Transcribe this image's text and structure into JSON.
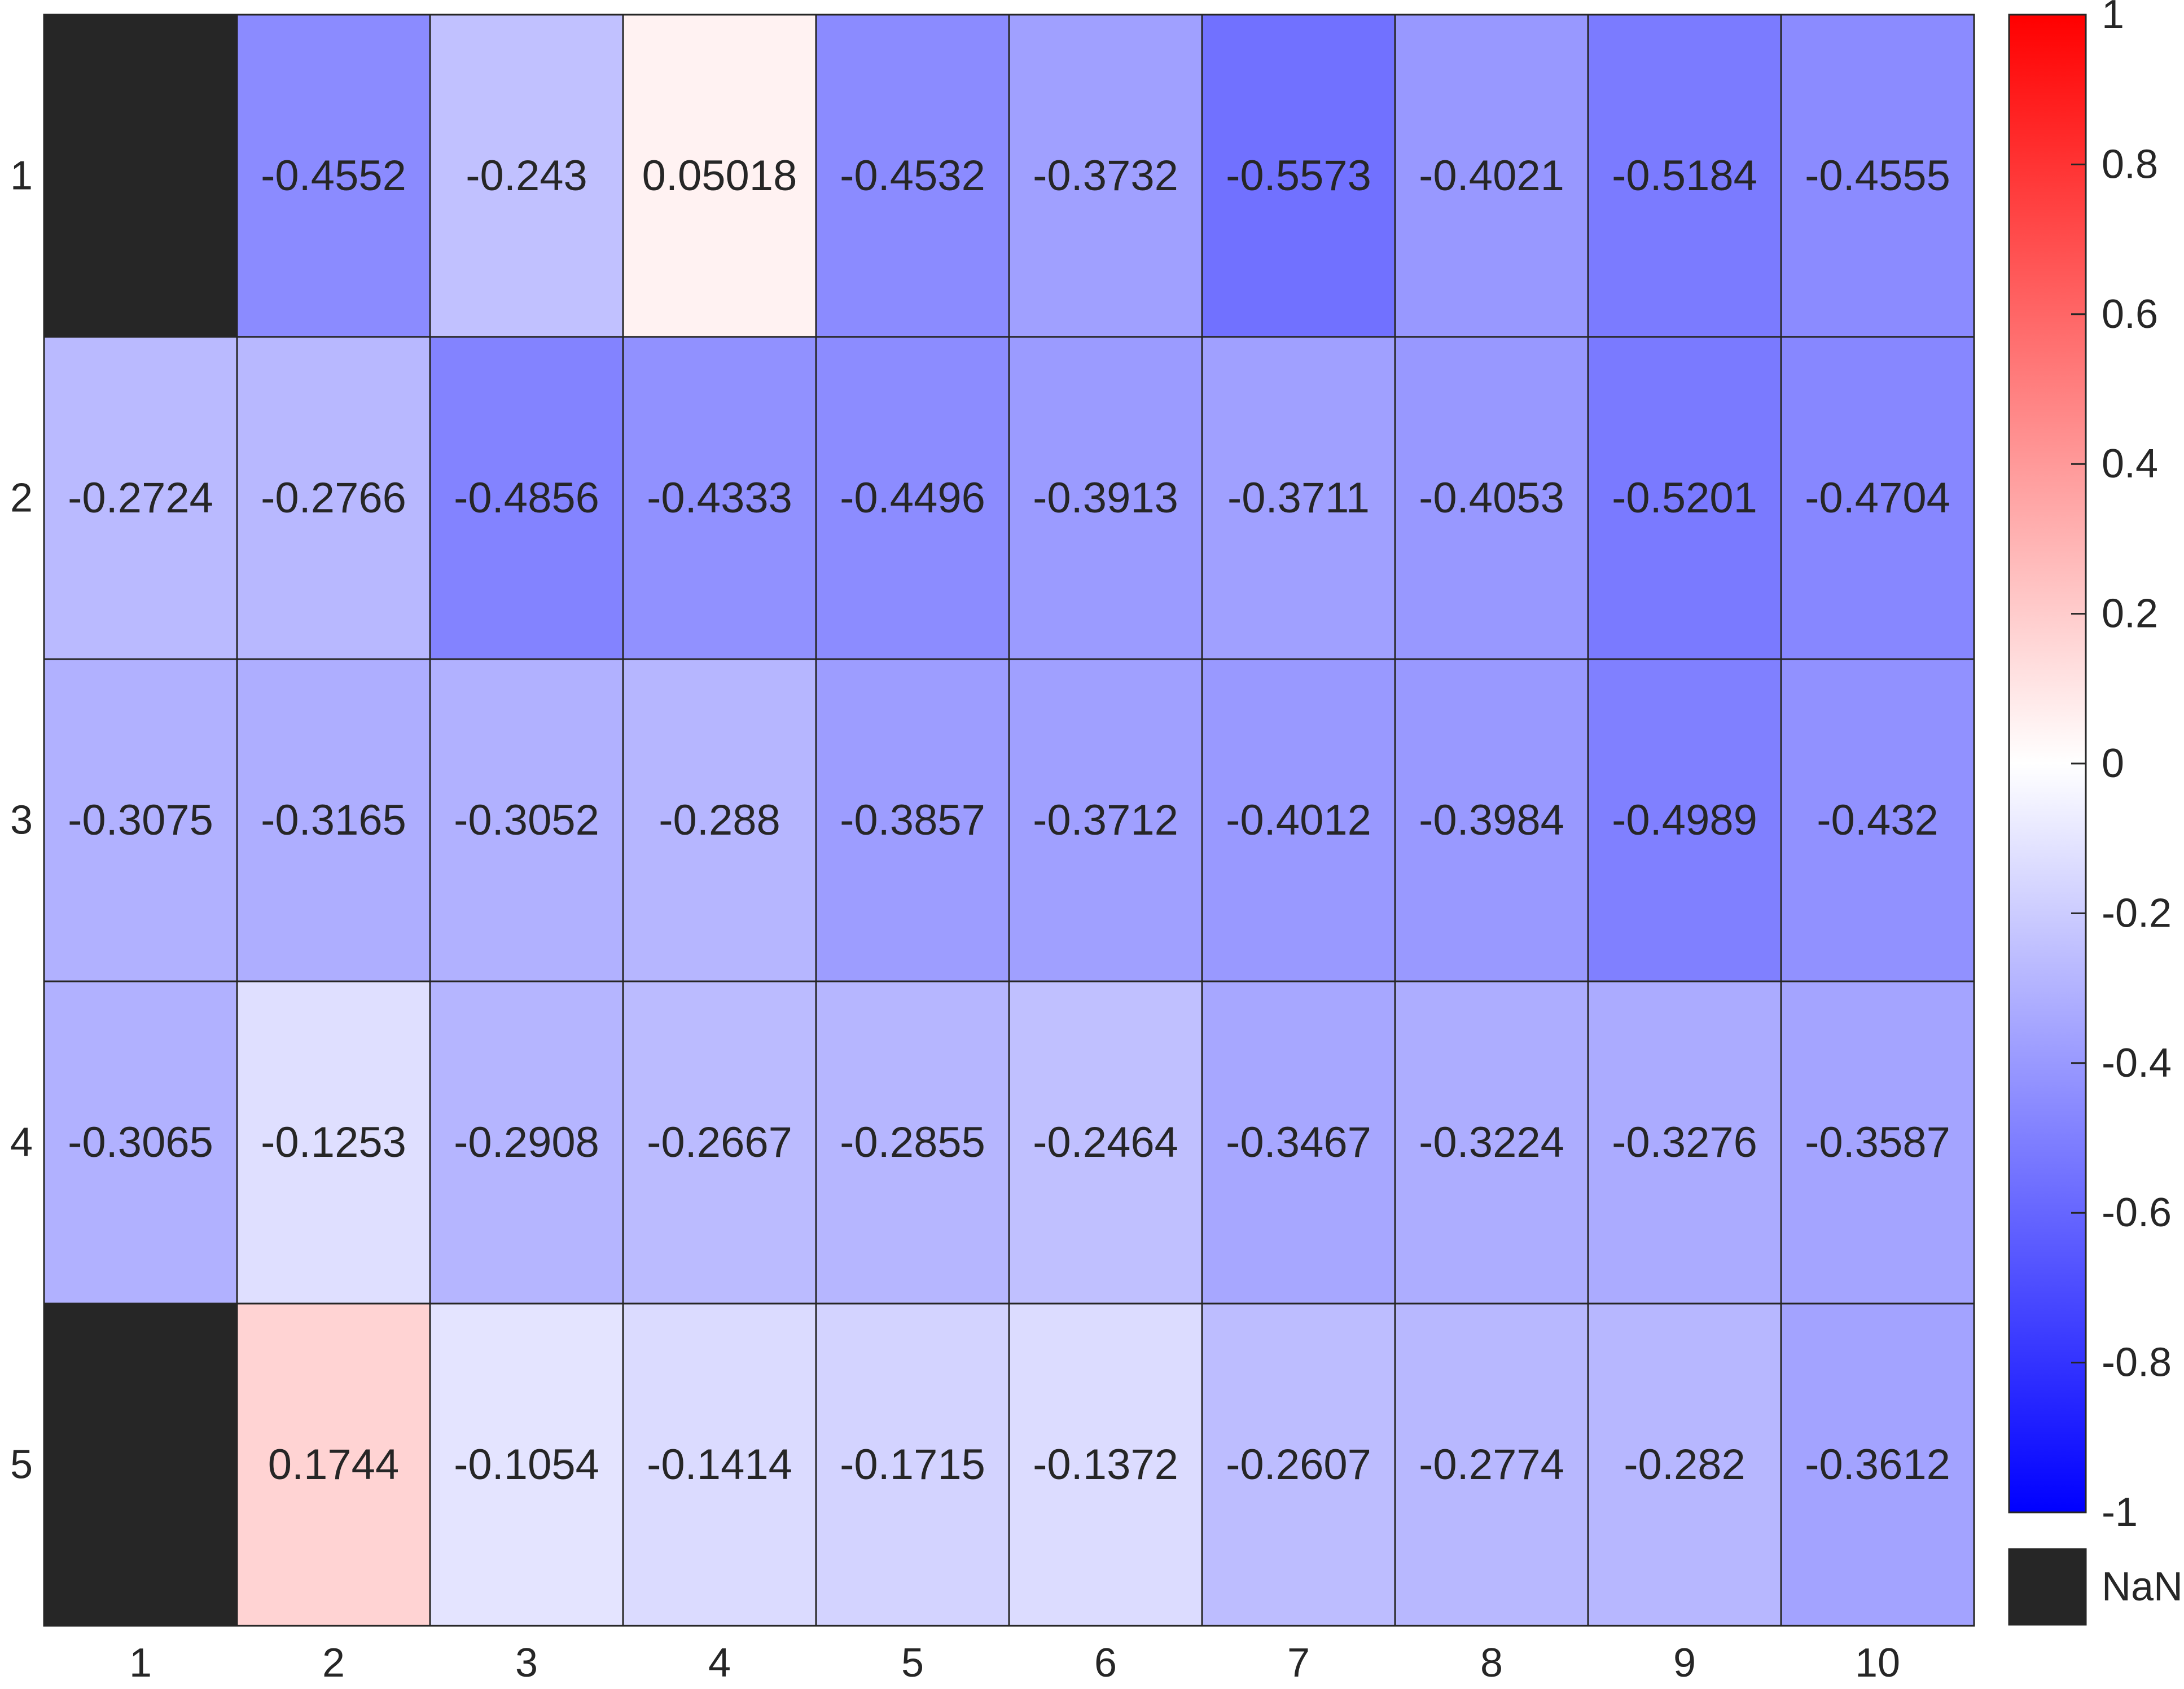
{
  "chart_data": {
    "type": "heatmap",
    "title": "",
    "xlabel": "",
    "ylabel": "",
    "x_categories": [
      "1",
      "2",
      "3",
      "4",
      "5",
      "6",
      "7",
      "8",
      "9",
      "10"
    ],
    "y_categories": [
      "1",
      "2",
      "3",
      "4",
      "5"
    ],
    "values": [
      [
        null,
        -0.4552,
        -0.243,
        0.05018,
        -0.4532,
        -0.3732,
        -0.5573,
        -0.4021,
        -0.5184,
        -0.4555
      ],
      [
        -0.2724,
        -0.2766,
        -0.4856,
        -0.4333,
        -0.4496,
        -0.3913,
        -0.3711,
        -0.4053,
        -0.5201,
        -0.4704
      ],
      [
        -0.3075,
        -0.3165,
        -0.3052,
        -0.288,
        -0.3857,
        -0.3712,
        -0.4012,
        -0.3984,
        -0.4989,
        -0.432
      ],
      [
        -0.3065,
        -0.1253,
        -0.2908,
        -0.2667,
        -0.2855,
        -0.2464,
        -0.3467,
        -0.3224,
        -0.3276,
        -0.3587
      ],
      [
        null,
        0.1744,
        -0.1054,
        -0.1414,
        -0.1715,
        -0.1372,
        -0.2607,
        -0.2774,
        -0.282,
        -0.3612
      ]
    ],
    "cell_labels": [
      [
        "",
        "-0.4552",
        "-0.243",
        "0.05018",
        "-0.4532",
        "-0.3732",
        "-0.5573",
        "-0.4021",
        "-0.5184",
        "-0.4555"
      ],
      [
        "-0.2724",
        "-0.2766",
        "-0.4856",
        "-0.4333",
        "-0.4496",
        "-0.3913",
        "-0.3711",
        "-0.4053",
        "-0.5201",
        "-0.4704"
      ],
      [
        "-0.3075",
        "-0.3165",
        "-0.3052",
        "-0.288",
        "-0.3857",
        "-0.3712",
        "-0.4012",
        "-0.3984",
        "-0.4989",
        "-0.432"
      ],
      [
        "-0.3065",
        "-0.1253",
        "-0.2908",
        "-0.2667",
        "-0.2855",
        "-0.2464",
        "-0.3467",
        "-0.3224",
        "-0.3276",
        "-0.3587"
      ],
      [
        "",
        "0.1744",
        "-0.1054",
        "-0.1414",
        "-0.1715",
        "-0.1372",
        "-0.2607",
        "-0.2774",
        "-0.282",
        "-0.3612"
      ]
    ],
    "colorbar": {
      "min": -1,
      "max": 1,
      "ticks": [
        1,
        0.8,
        0.6,
        0.4,
        0.2,
        0,
        -0.2,
        -0.4,
        -0.6,
        -0.8,
        -1
      ],
      "tick_labels": [
        "1",
        "0.8",
        "0.6",
        "0.4",
        "0.2",
        "0",
        "-0.2",
        "-0.4",
        "-0.6",
        "-0.8",
        "-1"
      ],
      "colormap": [
        "#0000ff",
        "#ffffff",
        "#ff0000"
      ],
      "nan_label": "NaN",
      "nan_color": "#262626"
    },
    "grid": true,
    "grid_color": "#262626"
  }
}
